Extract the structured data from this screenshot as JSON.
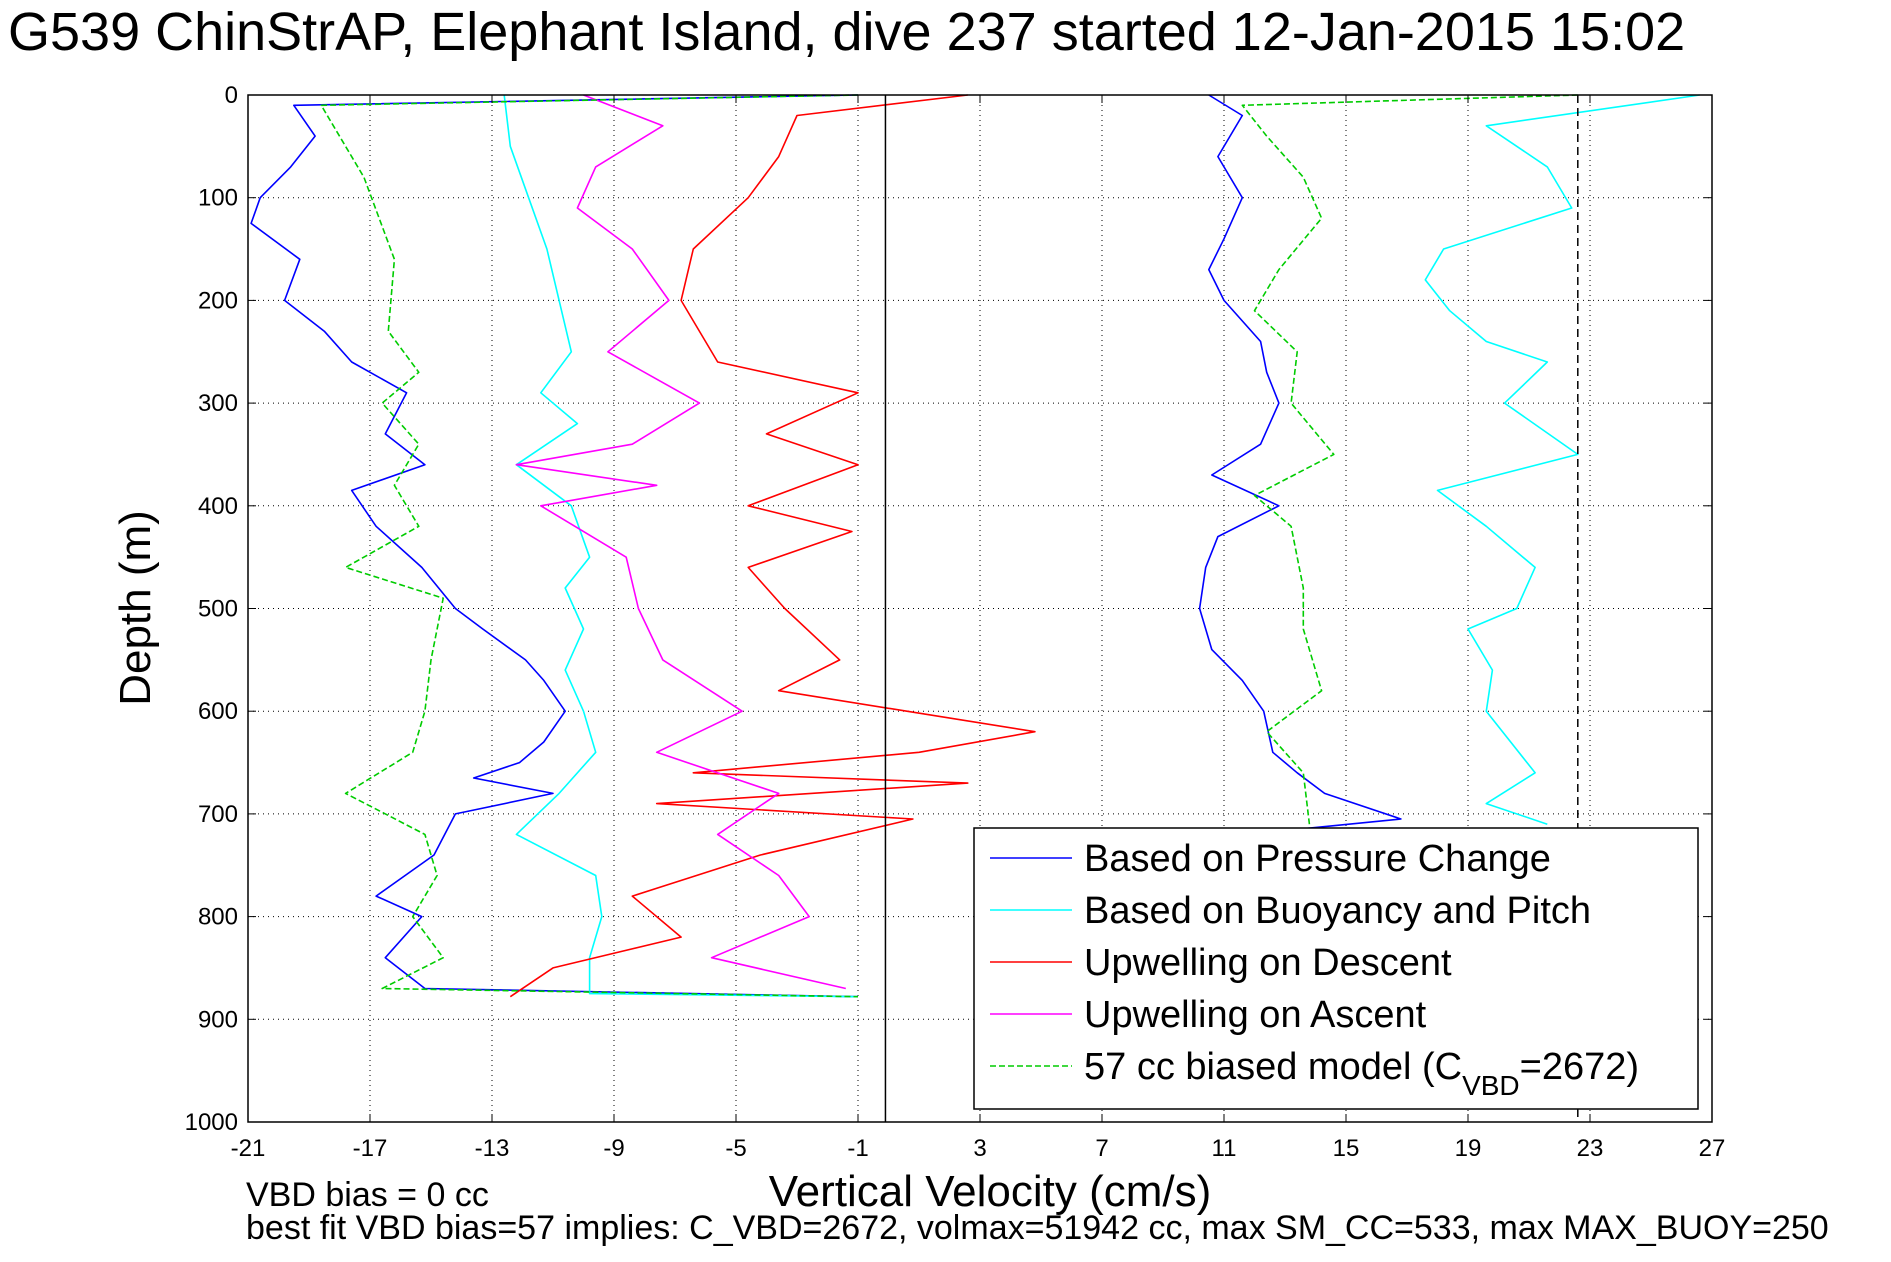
{
  "chart_data": {
    "type": "line",
    "title": "G539 ChinStrAP, Elephant Island, dive 237 started 12-Jan-2015 15:02",
    "xlabel": "Vertical Velocity (cm/s)",
    "ylabel": "Depth (m)",
    "xlim": [
      -21,
      27
    ],
    "ylim": [
      0,
      1000
    ],
    "y_reversed": true,
    "xticks": [
      -21,
      -17,
      -13,
      -9,
      -5,
      -1,
      3,
      7,
      11,
      15,
      19,
      23,
      27
    ],
    "yticks": [
      0,
      100,
      200,
      300,
      400,
      500,
      600,
      700,
      800,
      900,
      1000
    ],
    "grid": true,
    "legend_position": "bottom-right",
    "vertical_reference_lines": [
      {
        "x": -0.1,
        "style": "solid",
        "color": "#000000"
      },
      {
        "x": 22.6,
        "style": "dashed",
        "color": "#000000"
      }
    ],
    "series": [
      {
        "name": "Based on Pressure Change",
        "color": "#0000ff",
        "style": "solid",
        "segments": [
          [
            [
              -1,
              0
            ],
            [
              -19.5,
              10
            ],
            [
              -18.8,
              40
            ],
            [
              -19.6,
              70
            ],
            [
              -20.6,
              100
            ],
            [
              -20.9,
              125
            ],
            [
              -19.3,
              160
            ],
            [
              -19.8,
              200
            ],
            [
              -18.5,
              230
            ],
            [
              -17.6,
              260
            ],
            [
              -15.8,
              290
            ],
            [
              -16.5,
              330
            ],
            [
              -15.2,
              360
            ],
            [
              -17.6,
              385
            ],
            [
              -16.8,
              420
            ],
            [
              -15.3,
              460
            ],
            [
              -14.2,
              500
            ],
            [
              -13.3,
              520
            ],
            [
              -11.9,
              550
            ],
            [
              -11.3,
              570
            ],
            [
              -10.6,
              600
            ],
            [
              -11.3,
              630
            ],
            [
              -12.1,
              650
            ],
            [
              -13.6,
              665
            ],
            [
              -11.0,
              680
            ],
            [
              -14.2,
              700
            ],
            [
              -14.9,
              740
            ],
            [
              -16.8,
              780
            ],
            [
              -15.3,
              800
            ],
            [
              -16.5,
              840
            ],
            [
              -15.2,
              870
            ],
            [
              -1.0,
              878
            ]
          ],
          [
            [
              10.5,
              0
            ],
            [
              11.6,
              20
            ],
            [
              10.8,
              60
            ],
            [
              11.6,
              100
            ],
            [
              11.0,
              140
            ],
            [
              10.5,
              170
            ],
            [
              11.0,
              200
            ],
            [
              12.2,
              240
            ],
            [
              12.4,
              270
            ],
            [
              12.8,
              300
            ],
            [
              12.2,
              340
            ],
            [
              10.6,
              370
            ],
            [
              12.8,
              400
            ],
            [
              10.8,
              430
            ],
            [
              10.4,
              460
            ],
            [
              10.2,
              500
            ],
            [
              10.6,
              540
            ],
            [
              11.6,
              570
            ],
            [
              12.3,
              600
            ],
            [
              12.6,
              640
            ],
            [
              13.4,
              660
            ],
            [
              14.3,
              680
            ],
            [
              16.8,
              705
            ],
            [
              13.4,
              715
            ]
          ]
        ]
      },
      {
        "name": "Based on Buoyancy and Pitch",
        "color": "#00ffff",
        "style": "solid",
        "segments": [
          [
            [
              -12.6,
              0
            ],
            [
              -12.4,
              50
            ],
            [
              -11.8,
              100
            ],
            [
              -11.2,
              150
            ],
            [
              -10.8,
              200
            ],
            [
              -10.4,
              250
            ],
            [
              -11.4,
              290
            ],
            [
              -10.2,
              320
            ],
            [
              -12.2,
              360
            ],
            [
              -10.4,
              400
            ],
            [
              -9.8,
              450
            ],
            [
              -10.6,
              480
            ],
            [
              -10.0,
              520
            ],
            [
              -10.6,
              560
            ],
            [
              -10.0,
              600
            ],
            [
              -9.6,
              640
            ],
            [
              -10.8,
              680
            ],
            [
              -12.2,
              720
            ],
            [
              -9.6,
              760
            ],
            [
              -9.4,
              800
            ],
            [
              -9.8,
              840
            ],
            [
              -9.8,
              875
            ],
            [
              -1.0,
              878
            ]
          ],
          [
            [
              26.6,
              0
            ],
            [
              19.6,
              30
            ],
            [
              21.6,
              70
            ],
            [
              22.4,
              110
            ],
            [
              18.2,
              150
            ],
            [
              17.6,
              180
            ],
            [
              18.4,
              210
            ],
            [
              19.6,
              240
            ],
            [
              21.6,
              260
            ],
            [
              20.2,
              300
            ],
            [
              22.6,
              350
            ],
            [
              18.0,
              385
            ],
            [
              19.6,
              420
            ],
            [
              21.2,
              460
            ],
            [
              20.6,
              500
            ],
            [
              19.0,
              520
            ],
            [
              19.8,
              560
            ],
            [
              19.6,
              600
            ],
            [
              21.2,
              660
            ],
            [
              19.6,
              690
            ],
            [
              21.6,
              710
            ]
          ]
        ]
      },
      {
        "name": "Upwelling on Descent",
        "color": "#ff0000",
        "style": "solid",
        "segments": [
          [
            [
              2.6,
              0
            ],
            [
              -3.0,
              20
            ],
            [
              -3.6,
              60
            ],
            [
              -4.6,
              100
            ],
            [
              -6.4,
              150
            ],
            [
              -6.8,
              200
            ],
            [
              -5.6,
              260
            ],
            [
              -1.0,
              290
            ],
            [
              -4.0,
              330
            ],
            [
              -1.0,
              360
            ],
            [
              -4.6,
              400
            ],
            [
              -1.2,
              425
            ],
            [
              -4.6,
              460
            ],
            [
              -3.4,
              500
            ],
            [
              -1.6,
              550
            ],
            [
              -3.6,
              580
            ],
            [
              0.6,
              600
            ],
            [
              4.8,
              620
            ],
            [
              1.0,
              640
            ],
            [
              -6.4,
              660
            ],
            [
              2.6,
              670
            ],
            [
              -7.6,
              690
            ],
            [
              0.8,
              705
            ],
            [
              -4.2,
              740
            ],
            [
              -8.4,
              780
            ],
            [
              -6.8,
              820
            ],
            [
              -11.0,
              850
            ],
            [
              -12.4,
              878
            ]
          ]
        ]
      },
      {
        "name": "Upwelling on Ascent",
        "color": "#ff00ff",
        "style": "solid",
        "segments": [
          [
            [
              -10.0,
              0
            ],
            [
              -7.4,
              30
            ],
            [
              -9.6,
              70
            ],
            [
              -10.2,
              110
            ],
            [
              -8.4,
              150
            ],
            [
              -7.2,
              200
            ],
            [
              -9.2,
              250
            ],
            [
              -6.2,
              300
            ],
            [
              -8.4,
              340
            ],
            [
              -12.2,
              360
            ],
            [
              -7.6,
              380
            ],
            [
              -11.4,
              400
            ],
            [
              -8.6,
              450
            ],
            [
              -8.2,
              500
            ],
            [
              -7.4,
              550
            ],
            [
              -4.8,
              600
            ],
            [
              -7.6,
              640
            ],
            [
              -3.6,
              680
            ],
            [
              -5.6,
              720
            ],
            [
              -3.6,
              760
            ],
            [
              -2.6,
              800
            ],
            [
              -5.8,
              840
            ],
            [
              -1.4,
              870
            ]
          ]
        ]
      },
      {
        "name": "57 cc biased model (C",
        "name_subscript": "VBD",
        "name_suffix": "=2672)",
        "color": "#00cc00",
        "style": "dashed",
        "segments": [
          [
            [
              -1,
              0
            ],
            [
              -18.6,
              10
            ],
            [
              -17.2,
              80
            ],
            [
              -16.2,
              160
            ],
            [
              -16.4,
              230
            ],
            [
              -15.4,
              270
            ],
            [
              -16.6,
              300
            ],
            [
              -15.4,
              340
            ],
            [
              -16.2,
              380
            ],
            [
              -15.4,
              420
            ],
            [
              -17.8,
              460
            ],
            [
              -14.6,
              490
            ],
            [
              -15.0,
              550
            ],
            [
              -15.2,
              600
            ],
            [
              -15.6,
              640
            ],
            [
              -17.8,
              680
            ],
            [
              -15.2,
              720
            ],
            [
              -14.8,
              760
            ],
            [
              -15.6,
              800
            ],
            [
              -14.6,
              840
            ],
            [
              -16.6,
              870
            ],
            [
              -1.0,
              878
            ]
          ],
          [
            [
              22.6,
              0
            ],
            [
              11.6,
              10
            ],
            [
              12.4,
              40
            ],
            [
              13.6,
              80
            ],
            [
              14.2,
              120
            ],
            [
              12.8,
              170
            ],
            [
              12.0,
              210
            ],
            [
              13.4,
              250
            ],
            [
              13.2,
              300
            ],
            [
              14.6,
              350
            ],
            [
              12.0,
              390
            ],
            [
              13.2,
              420
            ],
            [
              13.6,
              480
            ],
            [
              13.6,
              520
            ],
            [
              14.2,
              580
            ],
            [
              12.4,
              620
            ],
            [
              13.6,
              660
            ],
            [
              13.8,
              710
            ]
          ]
        ]
      }
    ]
  },
  "annotations": {
    "vbd_bias": "VBD bias = 0 cc",
    "best_fit": "best fit VBD bias=57 implies: C_VBD=2672, volmax=51942 cc, max SM_CC=533, max MAX_BUOY=250"
  }
}
